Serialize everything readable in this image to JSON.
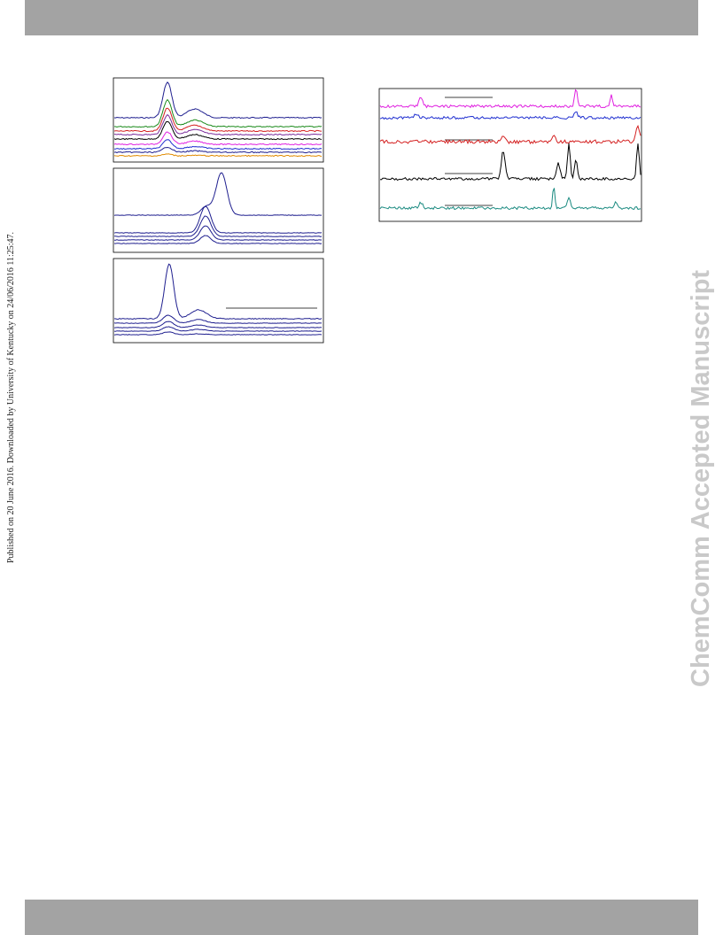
{
  "side_note": "Published on 20 June 2016. Downloaded by University of Kentucky on 24/06/2016 11:25:47.",
  "watermark": "ChemComm Accepted Manuscript"
}
